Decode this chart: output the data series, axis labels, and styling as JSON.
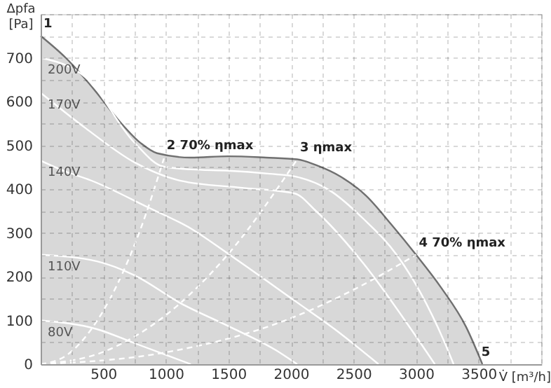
{
  "chart_data": {
    "type": "line",
    "xlabel": "V̇ [m³/h]",
    "ylabel": "Δpfa [Pa]",
    "xlim": [
      0,
      4000
    ],
    "ylim": [
      0,
      800
    ],
    "xticks": [
      {
        "value": 0,
        "label": null
      },
      {
        "value": 250,
        "label": null
      },
      500,
      {
        "value": 750,
        "label": null
      },
      1000,
      {
        "value": 1250,
        "label": null
      },
      1500,
      {
        "value": 1750,
        "label": null
      },
      2000,
      {
        "value": 2250,
        "label": null
      },
      2500,
      {
        "value": 2750,
        "label": null
      },
      3000,
      {
        "value": 3250,
        "label": null
      },
      3500,
      {
        "value": 3750,
        "label": null
      },
      {
        "value": 4000,
        "label": null
      }
    ],
    "yticks": [
      0,
      {
        "value": 50,
        "label": null
      },
      100,
      {
        "value": 150,
        "label": null
      },
      200,
      {
        "value": 250,
        "label": null
      },
      300,
      {
        "value": 350,
        "label": null
      },
      400,
      {
        "value": 450,
        "label": null
      },
      500,
      {
        "value": 550,
        "label": null
      },
      600,
      {
        "value": 650,
        "label": null
      },
      700,
      {
        "value": 750,
        "label": null
      },
      {
        "value": 800,
        "label": null
      }
    ],
    "grid": true,
    "series": [
      {
        "type": "area",
        "color": "#c8c8c8",
        "x": [
          0,
          200,
          440,
          600,
          800,
          930,
          1200,
          1500,
          1800,
          2050,
          2200,
          2400,
          2600,
          2800,
          3000,
          3200,
          3400,
          3530
        ],
        "values": [
          750,
          700,
          623,
          565,
          505,
          482,
          472,
          475,
          472,
          468,
          455,
          428,
          385,
          320,
          250,
          175,
          85,
          0
        ]
      },
      {
        "name": "200V",
        "color": "#ffffff",
        "x": [
          0,
          360,
          750,
          975,
          1200,
          1500,
          1830,
          2030,
          2310,
          2580,
          2850,
          3040,
          3220,
          3300
        ],
        "values": [
          700,
          655,
          506,
          452,
          445,
          442,
          435,
          429,
          397,
          332,
          248,
          161,
          55,
          0
        ]
      },
      {
        "name": "170V",
        "color": "#ffffff",
        "x": [
          0,
          360,
          750,
          1120,
          1610,
          2030,
          2200,
          2580,
          2960,
          3150
        ],
        "values": [
          620,
          539,
          461,
          419,
          403,
          390,
          350,
          230,
          80,
          0
        ]
      },
      {
        "name": "140V",
        "color": "#ffffff",
        "x": [
          0,
          200,
          400,
          860,
          1200,
          1500,
          2030,
          2350,
          2700
        ],
        "values": [
          465,
          440,
          420,
          358,
          310,
          252,
          145,
          80,
          0
        ]
      },
      {
        "name": "110V",
        "color": "#ffffff",
        "x": [
          0,
          450,
          750,
          1120,
          1500,
          1880,
          2050
        ],
        "values": [
          250,
          235,
          203,
          139,
          87,
          32,
          0
        ]
      },
      {
        "name": "80V",
        "color": "#ffffff",
        "x": [
          0,
          450,
          750,
          1200
        ],
        "values": [
          100,
          80,
          48,
          0
        ]
      },
      {
        "color": "#ffffff",
        "line_style": "dashed",
        "x": [
          0,
          200,
          400,
          600,
          800,
          985
        ],
        "values": [
          0,
          19,
          78,
          175,
          310,
          470
        ]
      },
      {
        "color": "#ffffff",
        "line_style": "dashed",
        "x": [
          0,
          500,
          1000,
          1500,
          2050
        ],
        "values": [
          0,
          28,
          112,
          252,
          468
        ]
      },
      {
        "color": "#ffffff",
        "line_style": "dashed",
        "x": [
          0,
          1000,
          2000,
          2500,
          3000
        ],
        "values": [
          0,
          27,
          105,
          170,
          250
        ]
      }
    ],
    "annotations": [
      {
        "text": "1",
        "x": 0,
        "y": 750
      },
      {
        "text": "2 70% ηmax",
        "x": 985,
        "y": 472
      },
      {
        "text": "3 ηmax",
        "x": 2050,
        "y": 468
      },
      {
        "text": "4 70% ηmax",
        "x": 3000,
        "y": 250
      },
      {
        "text": "5",
        "x": 3500,
        "y": 0
      }
    ]
  }
}
